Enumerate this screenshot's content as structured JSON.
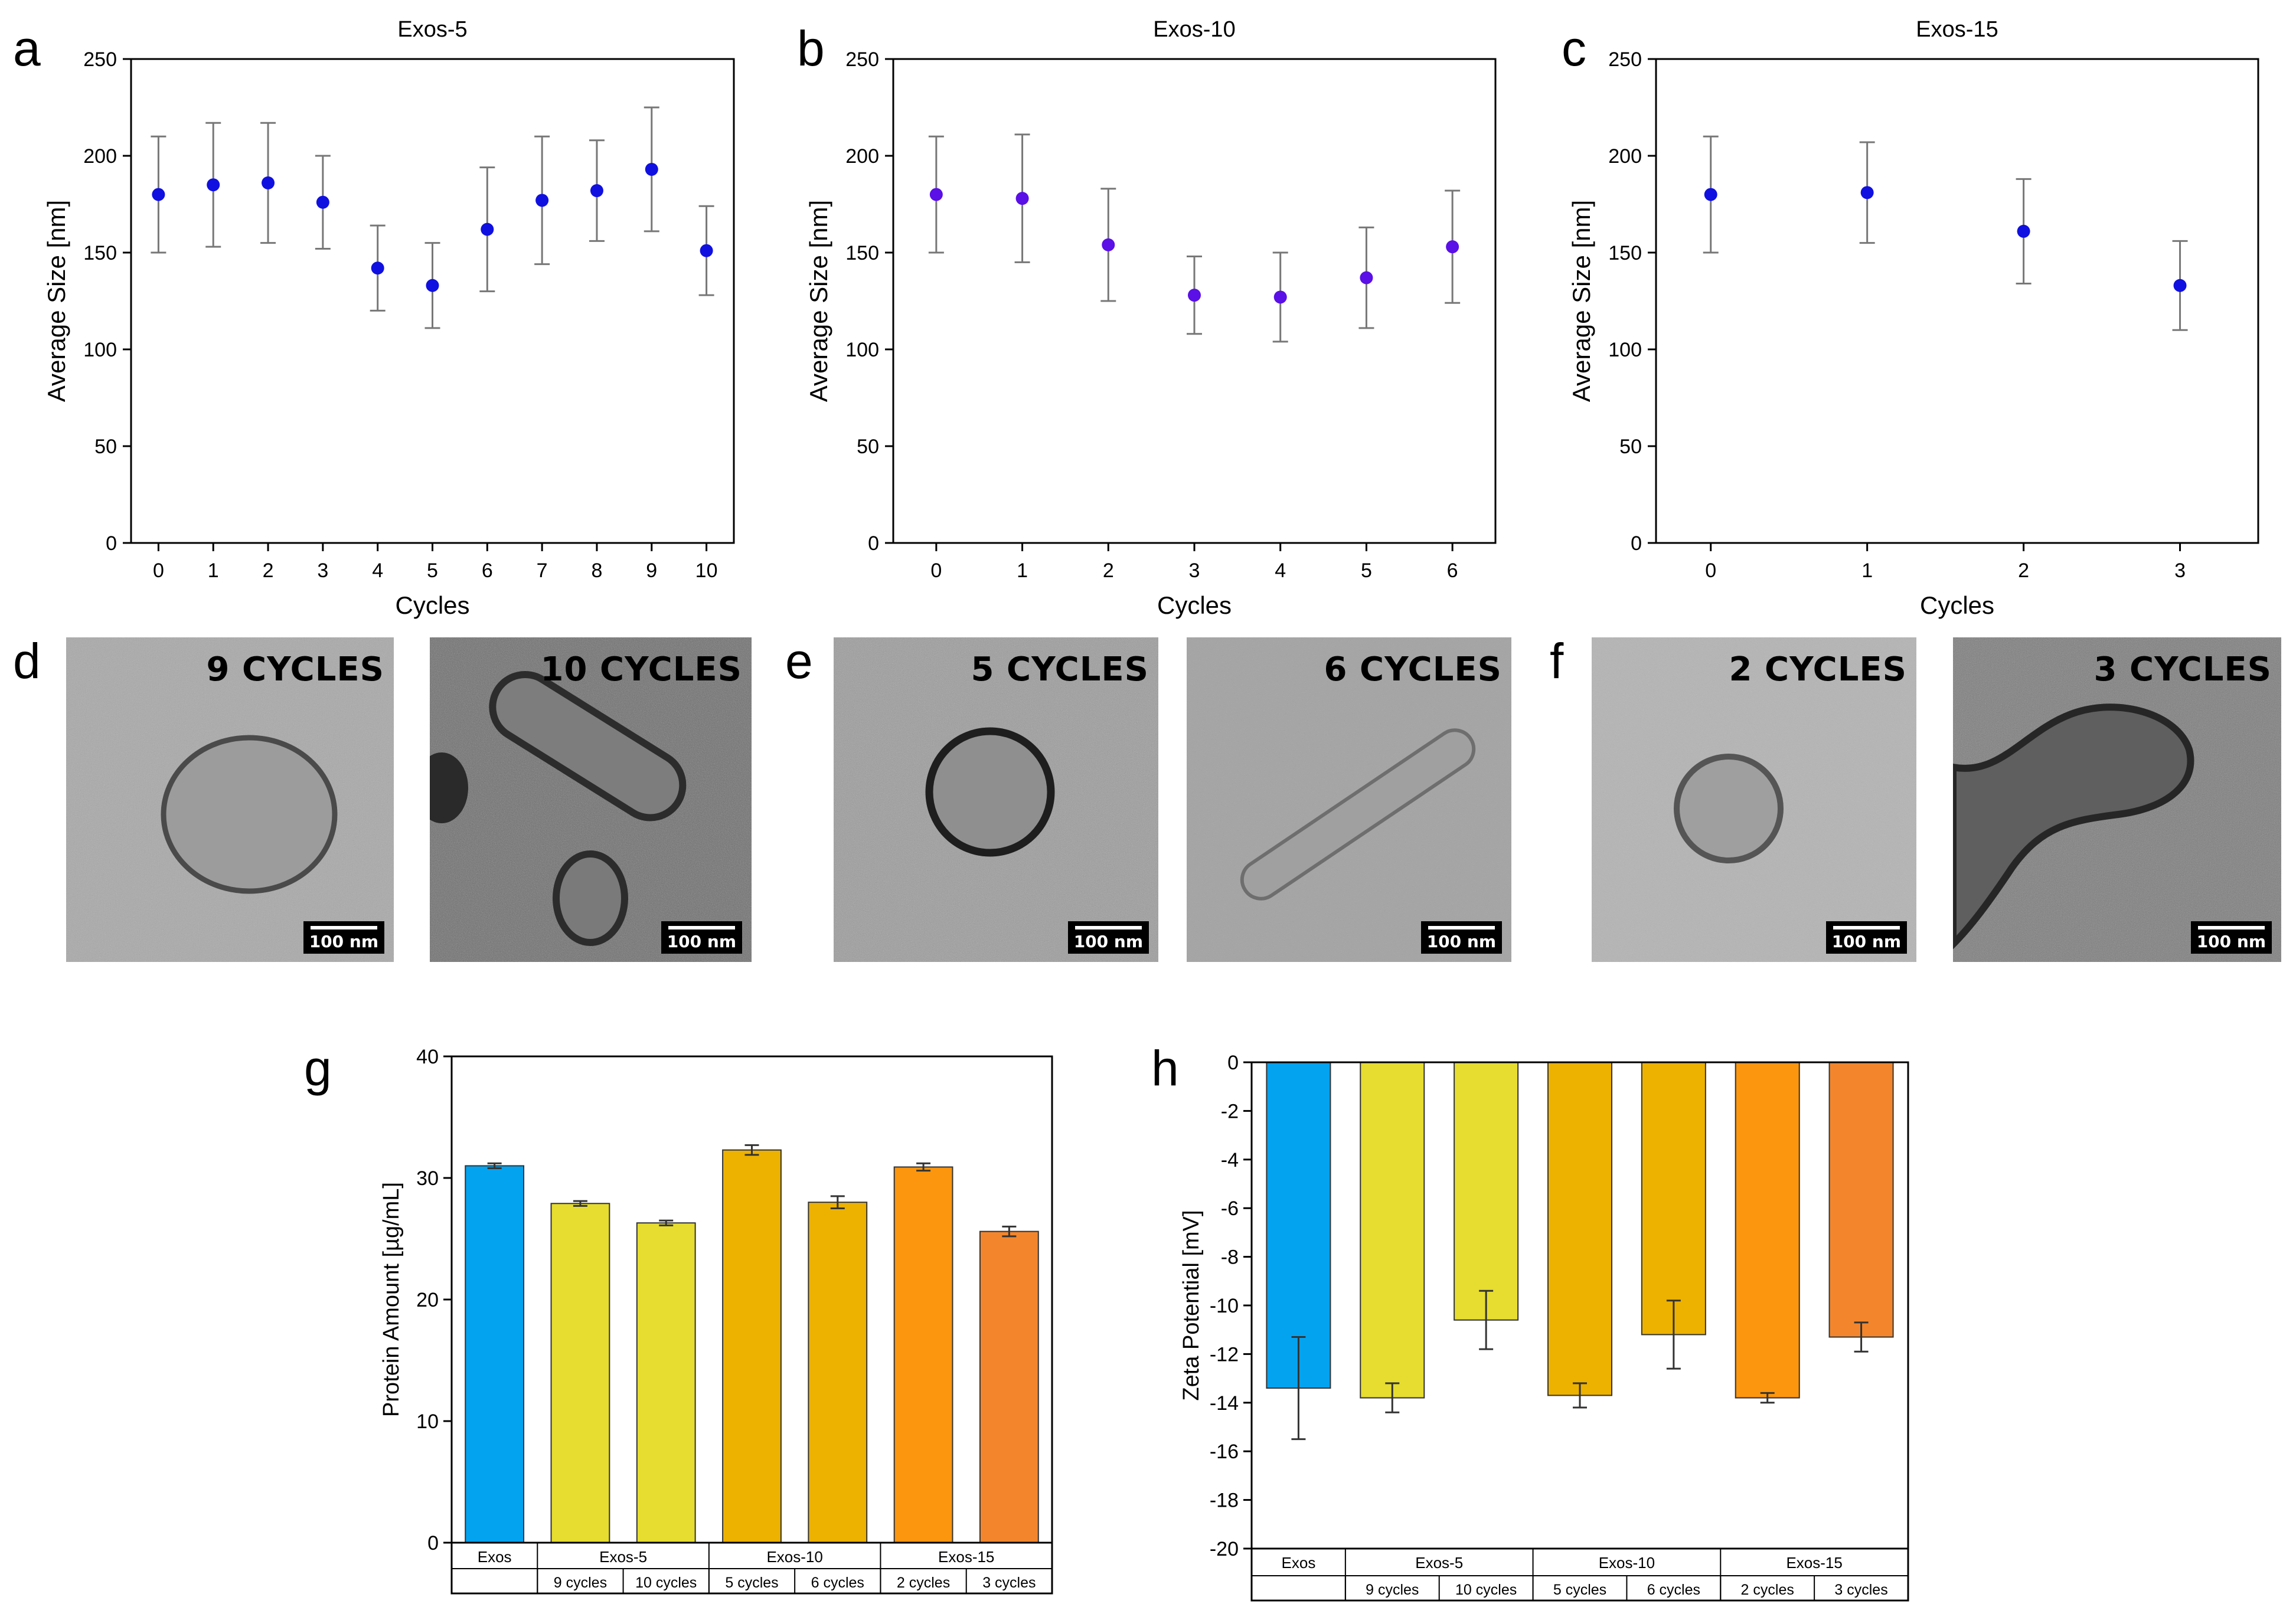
{
  "panels": {
    "a": "a",
    "b": "b",
    "c": "c",
    "d": "d",
    "e": "e",
    "f": "f",
    "g": "g",
    "h": "h"
  },
  "chart_data": [
    {
      "id": "a",
      "type": "scatter",
      "title": "Exos-5",
      "xlabel": "Cycles",
      "ylabel": "Average Size [nm]",
      "x": [
        0,
        1,
        2,
        3,
        4,
        5,
        6,
        7,
        8,
        9,
        10
      ],
      "y": [
        180,
        185,
        186,
        176,
        142,
        133,
        162,
        177,
        182,
        193,
        151
      ],
      "err": [
        30,
        32,
        31,
        24,
        22,
        22,
        32,
        33,
        26,
        32,
        23
      ],
      "xlim": [
        -0.5,
        10.5
      ],
      "ylim": [
        0,
        250
      ],
      "yticks": [
        0,
        50,
        100,
        150,
        200,
        250
      ],
      "xticks": [
        0,
        1,
        2,
        3,
        4,
        5,
        6,
        7,
        8,
        9,
        10
      ],
      "marker_color": "#1010e0"
    },
    {
      "id": "b",
      "type": "scatter",
      "title": "Exos-10",
      "xlabel": "Cycles",
      "ylabel": "Average Size [nm]",
      "x": [
        0,
        1,
        2,
        3,
        4,
        5,
        6
      ],
      "y": [
        180,
        178,
        154,
        128,
        127,
        137,
        153
      ],
      "err": [
        30,
        33,
        29,
        20,
        23,
        26,
        29
      ],
      "xlim": [
        -0.5,
        6.5
      ],
      "ylim": [
        0,
        250
      ],
      "yticks": [
        0,
        50,
        100,
        150,
        200,
        250
      ],
      "xticks": [
        0,
        1,
        2,
        3,
        4,
        5,
        6
      ],
      "marker_color": "#5a10e6"
    },
    {
      "id": "c",
      "type": "scatter",
      "title": "Exos-15",
      "xlabel": "Cycles",
      "ylabel": "Average Size [nm]",
      "x": [
        0,
        1,
        2,
        3
      ],
      "y": [
        180,
        181,
        161,
        133
      ],
      "err": [
        30,
        26,
        27,
        23
      ],
      "xlim": [
        -0.35,
        3.5
      ],
      "ylim": [
        0,
        250
      ],
      "yticks": [
        0,
        50,
        100,
        150,
        200,
        250
      ],
      "xticks": [
        0,
        1,
        2,
        3
      ],
      "marker_color": "#1010e0"
    },
    {
      "id": "g",
      "type": "bar",
      "title": "",
      "ylabel": "Protein Amount [µg/mL]",
      "values": [
        31.0,
        27.9,
        26.3,
        32.3,
        28.0,
        30.9,
        25.6
      ],
      "err": [
        0.2,
        0.2,
        0.2,
        0.4,
        0.5,
        0.3,
        0.4
      ],
      "colors": [
        "#04a3f0",
        "#e6dd30",
        "#e6dd30",
        "#edb200",
        "#edb200",
        "#fb960e",
        "#f3862c"
      ],
      "ylim": [
        0,
        40
      ],
      "yticks": [
        0,
        10,
        20,
        30,
        40
      ],
      "groups": [
        "Exos",
        "Exos-5",
        "Exos-10",
        "Exos-15"
      ],
      "group_spans": [
        1,
        2,
        2,
        2
      ],
      "subcategories": [
        "",
        "9 cycles",
        "10 cycles",
        "5 cycles",
        "6 cycles",
        "2 cycles",
        "3 cycles"
      ]
    },
    {
      "id": "h",
      "type": "bar",
      "title": "",
      "ylabel": "Zeta Potential [mV]",
      "values": [
        -13.4,
        -13.8,
        -10.6,
        -13.7,
        -11.2,
        -13.8,
        -11.3
      ],
      "err": [
        2.1,
        0.6,
        1.2,
        0.5,
        1.4,
        0.2,
        0.6
      ],
      "colors": [
        "#04a3f0",
        "#e6dd30",
        "#e6dd30",
        "#edb200",
        "#edb200",
        "#fb960e",
        "#f3862c"
      ],
      "ylim": [
        -20,
        0
      ],
      "yticks": [
        0,
        -2,
        -4,
        -6,
        -8,
        -10,
        -12,
        -14,
        -16,
        -18,
        -20
      ],
      "groups": [
        "Exos",
        "Exos-5",
        "Exos-10",
        "Exos-15"
      ],
      "group_spans": [
        1,
        2,
        2,
        2
      ],
      "subcategories": [
        "",
        "9 cycles",
        "10 cycles",
        "5 cycles",
        "6 cycles",
        "2 cycles",
        "3 cycles"
      ]
    }
  ],
  "tem_images": [
    {
      "id": "d1",
      "label": "9 CYCLES",
      "scale": "100 nm"
    },
    {
      "id": "d2",
      "label": "10 CYCLES",
      "scale": "100 nm"
    },
    {
      "id": "e1",
      "label": "5 CYCLES",
      "scale": "100 nm"
    },
    {
      "id": "e2",
      "label": "6 CYCLES",
      "scale": "100 nm"
    },
    {
      "id": "f1",
      "label": "2 CYCLES",
      "scale": "100 nm"
    },
    {
      "id": "f2",
      "label": "3 CYCLES",
      "scale": "100 nm"
    }
  ]
}
